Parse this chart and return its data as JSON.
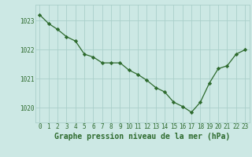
{
  "x": [
    0,
    1,
    2,
    3,
    4,
    5,
    6,
    7,
    8,
    9,
    10,
    11,
    12,
    13,
    14,
    15,
    16,
    17,
    18,
    19,
    20,
    21,
    22,
    23
  ],
  "y": [
    1023.2,
    1022.9,
    1022.7,
    1022.45,
    1022.3,
    1021.85,
    1021.75,
    1021.55,
    1021.55,
    1021.55,
    1021.3,
    1021.15,
    1020.95,
    1020.7,
    1020.55,
    1020.2,
    1020.05,
    1019.85,
    1020.2,
    1020.85,
    1021.35,
    1021.45,
    1021.85,
    1022.0
  ],
  "line_color": "#2d6a2d",
  "marker_color": "#2d6a2d",
  "bg_color": "#cce8e4",
  "grid_color": "#aacfca",
  "label_color": "#2d6a2d",
  "xlabel": "Graphe pression niveau de la mer (hPa)",
  "ylim": [
    1019.5,
    1023.55
  ],
  "yticks": [
    1020,
    1021,
    1022,
    1023
  ],
  "xticks": [
    0,
    1,
    2,
    3,
    4,
    5,
    6,
    7,
    8,
    9,
    10,
    11,
    12,
    13,
    14,
    15,
    16,
    17,
    18,
    19,
    20,
    21,
    22,
    23
  ],
  "tick_fontsize": 5.5,
  "xlabel_fontsize": 7.0
}
